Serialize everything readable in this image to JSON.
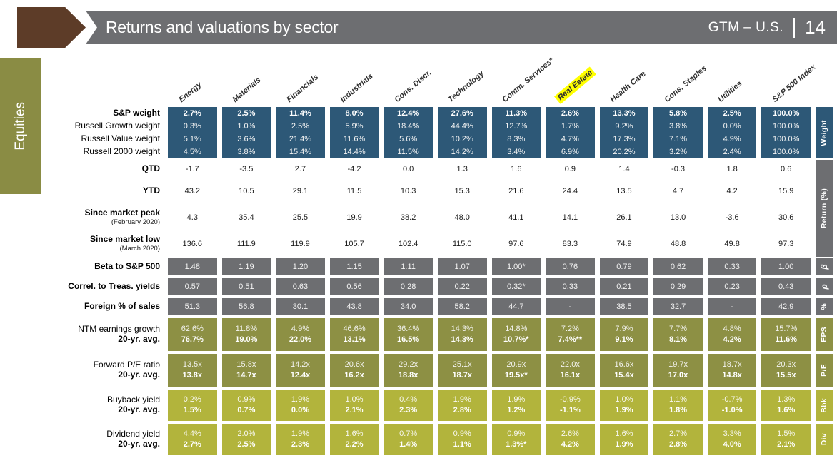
{
  "header": {
    "title": "Returns and valuations by sector",
    "brand": "GTM – U.S.",
    "page": "14"
  },
  "sidebar": {
    "label": "Equities"
  },
  "colors": {
    "blue": "#2d5877",
    "gray": "#6d6e71",
    "olive": "#8d9044",
    "lime": "#b2b43c",
    "brown": "#5d3c28",
    "sidebar_olive": "#8a8c44",
    "highlight": "#ffff00",
    "banner": "#6d6e71"
  },
  "table": {
    "columns": [
      "Energy",
      "Materials",
      "Financials",
      "Industrials",
      "Cons. Discr.",
      "Technology",
      "Comm. Services*",
      "Real Estate",
      "Health Care",
      "Cons. Staples",
      "Utilities",
      "S&P 500 Index"
    ],
    "highlight_column": "Real Estate",
    "sections": [
      {
        "id": "weight",
        "rail": "Weight",
        "style": "blue",
        "rows": [
          {
            "label": "S&P weight",
            "bold": true,
            "bold_values": true,
            "values": [
              "2.7%",
              "2.5%",
              "11.4%",
              "8.0%",
              "12.4%",
              "27.6%",
              "11.3%",
              "2.6%",
              "13.3%",
              "5.8%",
              "2.5%",
              "100.0%"
            ]
          },
          {
            "label": "Russell Growth weight",
            "values": [
              "0.3%",
              "1.0%",
              "2.5%",
              "5.9%",
              "18.4%",
              "44.4%",
              "12.7%",
              "1.7%",
              "9.2%",
              "3.8%",
              "0.0%",
              "100.0%"
            ]
          },
          {
            "label": "Russell Value weight",
            "values": [
              "5.1%",
              "3.6%",
              "21.4%",
              "11.6%",
              "5.6%",
              "10.2%",
              "8.3%",
              "4.7%",
              "17.3%",
              "7.1%",
              "4.9%",
              "100.0%"
            ]
          },
          {
            "label": "Russell 2000 weight",
            "values": [
              "4.5%",
              "3.8%",
              "15.4%",
              "14.4%",
              "11.5%",
              "14.2%",
              "3.4%",
              "6.9%",
              "20.2%",
              "3.2%",
              "2.4%",
              "100.0%"
            ]
          }
        ]
      },
      {
        "id": "return",
        "rail": "Return (%)",
        "style": "plain",
        "rows": [
          {
            "label": "QTD",
            "bold": true,
            "values": [
              "-1.7",
              "-3.5",
              "2.7",
              "-4.2",
              "0.0",
              "1.3",
              "1.6",
              "0.9",
              "1.4",
              "-0.3",
              "1.8",
              "0.6"
            ]
          },
          {
            "label": "YTD",
            "bold": true,
            "values": [
              "43.2",
              "10.5",
              "29.1",
              "11.5",
              "10.3",
              "15.3",
              "21.6",
              "24.4",
              "13.5",
              "4.7",
              "4.2",
              "15.9"
            ]
          },
          {
            "label": "Since market peak",
            "sub": "(February 2020)",
            "bold": true,
            "values": [
              "4.3",
              "35.4",
              "25.5",
              "19.9",
              "38.2",
              "48.0",
              "41.1",
              "14.1",
              "26.1",
              "13.0",
              "-3.6",
              "30.6"
            ]
          },
          {
            "label": "Since market low",
            "sub": "(March 2020)",
            "bold": true,
            "values": [
              "136.6",
              "111.9",
              "119.9",
              "105.7",
              "102.4",
              "115.0",
              "97.6",
              "83.3",
              "74.9",
              "48.8",
              "49.8",
              "97.3"
            ]
          }
        ]
      },
      {
        "id": "beta",
        "rail": "β",
        "rail_italic": true,
        "style": "gray",
        "rows": [
          {
            "label": "Beta to S&P 500",
            "bold": true,
            "values": [
              "1.48",
              "1.19",
              "1.20",
              "1.15",
              "1.11",
              "1.07",
              "1.00*",
              "0.76",
              "0.79",
              "0.62",
              "0.33",
              "1.00"
            ]
          }
        ]
      },
      {
        "id": "rho",
        "rail": "ρ",
        "rail_italic": true,
        "style": "gray",
        "rows": [
          {
            "label": "Correl. to Treas. yields",
            "bold": true,
            "values": [
              "0.57",
              "0.51",
              "0.63",
              "0.56",
              "0.28",
              "0.22",
              "0.32*",
              "0.33",
              "0.21",
              "0.29",
              "0.23",
              "0.43"
            ]
          }
        ]
      },
      {
        "id": "foreign",
        "rail": "%",
        "style": "gray",
        "rows": [
          {
            "label": "Foreign % of sales",
            "bold": true,
            "values": [
              "51.3",
              "56.8",
              "30.1",
              "43.8",
              "34.0",
              "58.2",
              "44.7",
              "-",
              "38.5",
              "32.7",
              "-",
              "42.9"
            ]
          }
        ]
      },
      {
        "id": "eps",
        "rail": "EPS",
        "style": "olive",
        "rows": [
          {
            "label": "NTM earnings growth",
            "label2": "20-yr. avg.",
            "values": [
              "62.6%",
              "11.8%",
              "4.9%",
              "46.6%",
              "36.4%",
              "14.3%",
              "14.8%",
              "7.2%",
              "7.9%",
              "7.7%",
              "4.8%",
              "15.7%"
            ],
            "values2": [
              "76.7%",
              "19.0%",
              "22.0%",
              "13.1%",
              "16.5%",
              "14.3%",
              "10.7%*",
              "7.4%**",
              "9.1%",
              "8.1%",
              "4.2%",
              "11.6%"
            ]
          }
        ]
      },
      {
        "id": "pe",
        "rail": "P/E",
        "style": "olive",
        "rows": [
          {
            "label": "Forward P/E ratio",
            "label2": "20-yr. avg.",
            "values": [
              "13.5x",
              "15.8x",
              "14.2x",
              "20.6x",
              "29.2x",
              "25.1x",
              "20.9x",
              "22.0x",
              "16.6x",
              "19.7x",
              "18.7x",
              "20.3x"
            ],
            "values2": [
              "13.8x",
              "14.7x",
              "12.4x",
              "16.2x",
              "18.8x",
              "18.7x",
              "19.5x*",
              "16.1x",
              "15.4x",
              "17.0x",
              "14.8x",
              "15.5x"
            ]
          }
        ]
      },
      {
        "id": "bbk",
        "rail": "Bbk",
        "style": "lime",
        "rows": [
          {
            "label": "Buyback yield",
            "label2": "20-yr. avg.",
            "values": [
              "0.2%",
              "0.9%",
              "1.9%",
              "1.0%",
              "0.4%",
              "1.9%",
              "1.9%",
              "-0.9%",
              "1.0%",
              "1.1%",
              "-0.7%",
              "1.3%"
            ],
            "values2": [
              "1.5%",
              "0.7%",
              "0.0%",
              "2.1%",
              "2.3%",
              "2.8%",
              "1.2%",
              "-1.1%",
              "1.9%",
              "1.8%",
              "-1.0%",
              "1.6%"
            ]
          }
        ]
      },
      {
        "id": "div",
        "rail": "Div",
        "style": "lime",
        "rows": [
          {
            "label": "Dividend yield",
            "label2": "20-yr. avg.",
            "values": [
              "4.4%",
              "2.0%",
              "1.9%",
              "1.6%",
              "0.7%",
              "0.9%",
              "0.9%",
              "2.6%",
              "1.6%",
              "2.7%",
              "3.3%",
              "1.5%"
            ],
            "values2": [
              "2.7%",
              "2.5%",
              "2.3%",
              "2.2%",
              "1.4%",
              "1.1%",
              "1.3%*",
              "4.2%",
              "1.9%",
              "2.8%",
              "4.0%",
              "2.1%"
            ]
          }
        ]
      }
    ]
  }
}
